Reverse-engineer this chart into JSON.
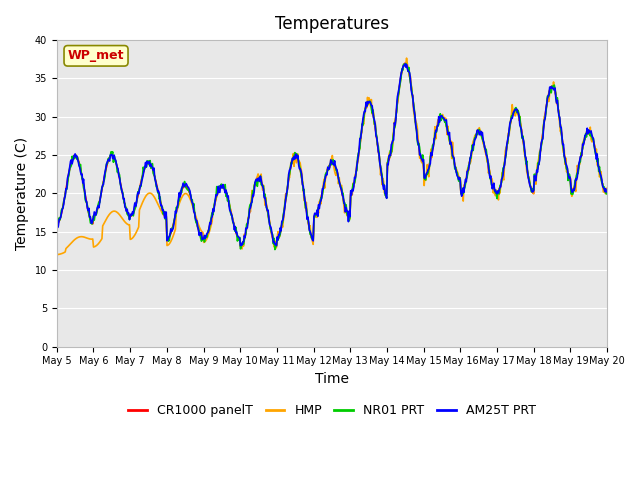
{
  "title": "Temperatures",
  "xlabel": "Time",
  "ylabel": "Temperature (C)",
  "ylim": [
    0,
    40
  ],
  "yticks": [
    0,
    5,
    10,
    15,
    20,
    25,
    30,
    35,
    40
  ],
  "xtick_positions": [
    0,
    1,
    2,
    3,
    4,
    5,
    6,
    7,
    8,
    9,
    10,
    11,
    12,
    13,
    14,
    15
  ],
  "xtick_labels": [
    "May 5",
    "May 6",
    "May 7",
    "May 8",
    "May 9",
    "May 10",
    "May 11",
    "May 12",
    "May 13",
    "May 14",
    "May 15",
    "May 16",
    "May 17",
    "May 18",
    "May 19",
    "May 20"
  ],
  "legend_labels": [
    "CR1000 panelT",
    "HMP",
    "NR01 PRT",
    "AM25T PRT"
  ],
  "legend_colors": [
    "#ff0000",
    "#ffa500",
    "#00cc00",
    "#0000ff"
  ],
  "annotation_text": "WP_met",
  "annotation_color": "#cc0000",
  "annotation_bg": "#ffffcc",
  "background_color": "#e8e8e8",
  "grid_color": "#ffffff",
  "title_fontsize": 12,
  "axis_fontsize": 10,
  "tick_fontsize": 7
}
